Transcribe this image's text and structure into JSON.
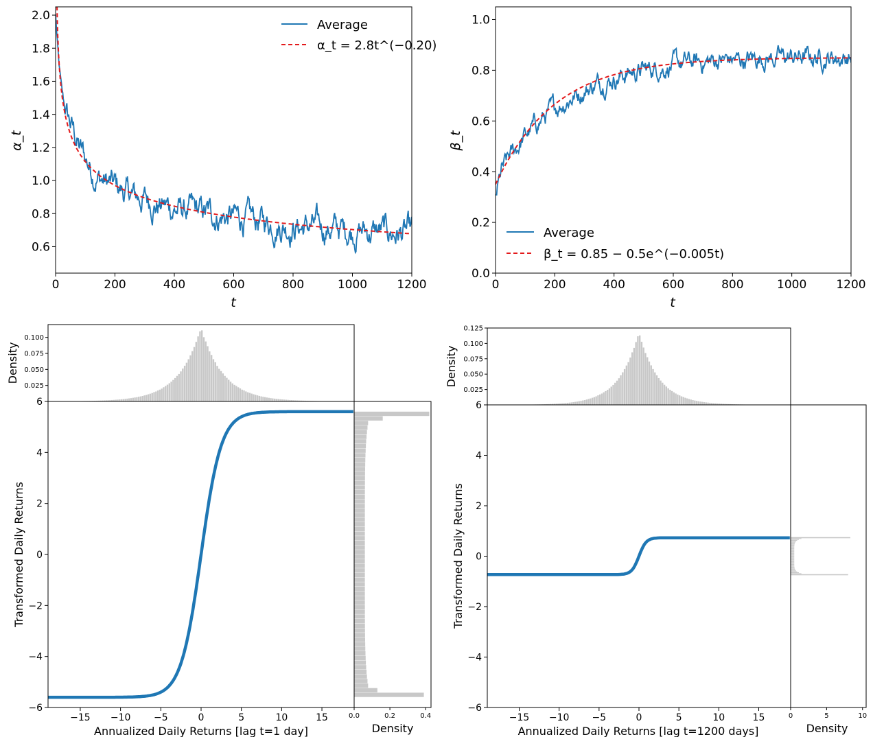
{
  "chart_data": [
    {
      "panel": "alpha",
      "type": "line",
      "ylabel": "α_t",
      "xlabel": "t",
      "xlim": [
        0,
        1200
      ],
      "ylim": [
        0.44,
        2.05
      ],
      "xticks": [
        0,
        200,
        400,
        600,
        800,
        1000,
        1200
      ],
      "yticks": [
        0.6,
        0.8,
        1.0,
        1.2,
        1.4,
        1.6,
        1.8,
        2.0
      ],
      "ytick_labels": [
        "0.6",
        "0.8",
        "1.0",
        "1.2",
        "1.4",
        "1.6",
        "1.8",
        "2.0"
      ],
      "legend_position": "top-right",
      "series": [
        {
          "name": "Average",
          "style": "solid",
          "color": "#1f77b4",
          "x": [
            0,
            10,
            20,
            30,
            40,
            60,
            80,
            100,
            130,
            160,
            200,
            230,
            260,
            300,
            340,
            380,
            420,
            460,
            500,
            540,
            580,
            620,
            660,
            700,
            740,
            780,
            820,
            860,
            900,
            940,
            980,
            1020,
            1060,
            1100,
            1140,
            1180,
            1200
          ],
          "values": [
            2.0,
            1.72,
            1.55,
            1.44,
            1.38,
            1.3,
            1.2,
            1.13,
            1.05,
            1.0,
            0.96,
            0.93,
            0.9,
            0.89,
            0.86,
            0.84,
            0.82,
            0.81,
            0.8,
            0.79,
            0.78,
            0.77,
            0.76,
            0.75,
            0.74,
            0.73,
            0.72,
            0.72,
            0.71,
            0.71,
            0.7,
            0.7,
            0.69,
            0.69,
            0.68,
            0.68,
            0.68
          ],
          "noise_amplitude": 0.12
        },
        {
          "name": "α_t = 2.8t^(−0.20)",
          "style": "dashed",
          "color": "#e31a1c",
          "formula": "alpha",
          "a": 2.8,
          "p": -0.2
        }
      ]
    },
    {
      "panel": "beta",
      "type": "line",
      "ylabel": "β_t",
      "xlabel": "t",
      "xlim": [
        0,
        1200
      ],
      "ylim": [
        0.0,
        1.05
      ],
      "xticks": [
        0,
        200,
        400,
        600,
        800,
        1000,
        1200
      ],
      "yticks": [
        0.0,
        0.2,
        0.4,
        0.6,
        0.8,
        1.0
      ],
      "ytick_labels": [
        "0.0",
        "0.2",
        "0.4",
        "0.6",
        "0.8",
        "1.0"
      ],
      "legend_position": "bottom-left",
      "series": [
        {
          "name": "Average",
          "style": "solid",
          "color": "#1f77b4",
          "x": [
            0,
            20,
            50,
            100,
            150,
            200,
            250,
            300,
            350,
            400,
            450,
            500,
            550,
            600,
            650,
            700,
            750,
            800,
            850,
            900,
            950,
            1000,
            1050,
            1100,
            1150,
            1200
          ],
          "values": [
            0.3,
            0.4,
            0.46,
            0.54,
            0.6,
            0.65,
            0.69,
            0.72,
            0.75,
            0.77,
            0.79,
            0.8,
            0.81,
            0.82,
            0.83,
            0.83,
            0.84,
            0.84,
            0.84,
            0.85,
            0.85,
            0.85,
            0.85,
            0.85,
            0.85,
            0.85
          ],
          "noise_amplitude": 0.05
        },
        {
          "name": "β_t = 0.85 − 0.5e^(−0.005t)",
          "style": "dashed",
          "color": "#e31a1c",
          "formula": "beta",
          "a": 0.85,
          "b": 0.5,
          "k": 0.005
        }
      ]
    },
    {
      "panel": "transform-lag1",
      "type": "line",
      "xlabel": "Annualized Daily Returns [lag t=1 day]",
      "ylabel": "Transformed Daily Returns",
      "xlim": [
        -19,
        19
      ],
      "ylim": [
        -6,
        6
      ],
      "xticks": [
        -15,
        -10,
        -5,
        0,
        5,
        10,
        15
      ],
      "xtick_labels": [
        "−15",
        "−10",
        "−5",
        "0",
        "5",
        "10",
        "15"
      ],
      "yticks": [
        -6,
        -4,
        -2,
        0,
        2,
        4,
        6
      ],
      "ytick_labels": [
        "−6",
        "−4",
        "−2",
        "0",
        "2",
        "4",
        "6"
      ],
      "curve": {
        "color": "#1f77b4",
        "amplitude": 5.6,
        "scale": 2.5
      },
      "top_histogram": {
        "ylabel": "Density",
        "ylim": [
          0,
          0.12
        ],
        "yticks": [
          0.025,
          0.05,
          0.075,
          0.1
        ],
        "ytick_labels": [
          "0.025",
          "0.050",
          "0.075",
          "0.100"
        ],
        "peak": 0.115,
        "scale": 2.8
      },
      "right_histogram": {
        "xlabel": "Density",
        "xlim": [
          0,
          0.43
        ],
        "xticks": [
          0.0,
          0.2,
          0.4
        ],
        "xtick_labels": [
          "0.0",
          "0.2",
          "0.4"
        ],
        "bin_count": 62,
        "edge_values": [
          0.42,
          0.39
        ],
        "floor": 0.06,
        "near_edge": [
          0.16,
          0.13
        ]
      }
    },
    {
      "panel": "transform-lag1200",
      "type": "line",
      "xlabel": "Annualized Daily Returns [lag t=1200 days]",
      "ylabel": "Transformed Daily Returns",
      "xlim": [
        -19,
        19
      ],
      "ylim": [
        -6,
        6
      ],
      "xticks": [
        -15,
        -10,
        -5,
        0,
        5,
        10,
        15
      ],
      "xtick_labels": [
        "−15",
        "−10",
        "−5",
        "0",
        "5",
        "10",
        "15"
      ],
      "yticks": [
        -6,
        -4,
        -2,
        0,
        2,
        4,
        6
      ],
      "ytick_labels": [
        "−6",
        "−4",
        "−2",
        "0",
        "2",
        "4",
        "6"
      ],
      "curve": {
        "color": "#1f77b4",
        "amplitude": 0.73,
        "scale": 0.9
      },
      "top_histogram": {
        "ylabel": "Density",
        "ylim": [
          0,
          0.125
        ],
        "yticks": [
          0.025,
          0.05,
          0.075,
          0.1,
          0.125
        ],
        "ytick_labels": [
          "0.025",
          "0.050",
          "0.075",
          "0.100",
          "0.125"
        ],
        "peak": 0.118,
        "scale": 2.5
      },
      "right_histogram": {
        "xlabel": "Density",
        "xlim": [
          0,
          10.5
        ],
        "xticks": [
          0,
          5,
          10
        ],
        "xtick_labels": [
          "0",
          "5",
          "10"
        ],
        "edge_values": [
          8.3,
          8.0
        ],
        "floor": 0.5
      }
    }
  ]
}
